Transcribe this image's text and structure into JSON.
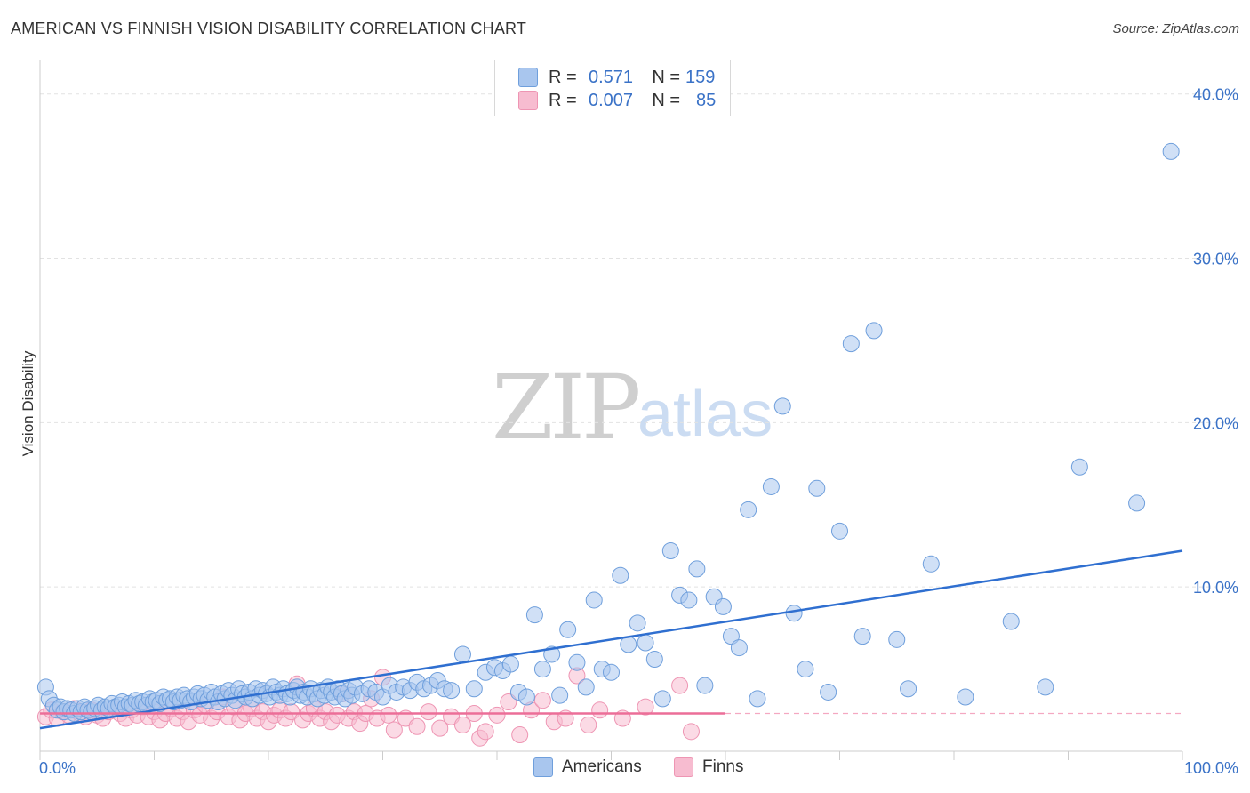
{
  "header": {
    "title": "AMERICAN VS FINNISH VISION DISABILITY CORRELATION CHART",
    "source": "Source: ZipAtlas.com"
  },
  "watermark": {
    "zip": "ZIP",
    "atlas": "atlas"
  },
  "legend": {
    "rows": [
      {
        "r_label": "R =",
        "r_value": "0.571",
        "n_label": "N =",
        "n_value": "159"
      },
      {
        "r_label": "R =",
        "r_value": "0.007",
        "n_label": "N =",
        "n_value": "85"
      }
    ],
    "bottom": [
      "Americans",
      "Finns"
    ]
  },
  "colors": {
    "americans_fill": "#a9c6ee",
    "americans_stroke": "#6f9fdc",
    "americans_line": "#2f6fd0",
    "finns_fill": "#f7bcd0",
    "finns_stroke": "#ee95b3",
    "finns_line": "#ec6e98",
    "tick_label": "#3a72c7",
    "grid": "#e2e2e2"
  },
  "chart_data": {
    "type": "scatter",
    "title": "AMERICAN VS FINNISH VISION DISABILITY CORRELATION CHART",
    "ylabel": "Vision Disability",
    "xlabel": "",
    "xlim": [
      0,
      100
    ],
    "ylim": [
      0,
      41.5
    ],
    "x_tick_labels": [
      "0.0%",
      "100.0%"
    ],
    "y_ticks": [
      10,
      20,
      30,
      40
    ],
    "y_tick_labels": [
      "10.0%",
      "20.0%",
      "30.0%",
      "40.0%"
    ],
    "grid": "horizontal dashed",
    "legend_position": "top-center",
    "series": [
      {
        "name": "Americans",
        "r": 0.571,
        "n": 159,
        "trend": {
          "x": [
            0,
            100
          ],
          "y": [
            1.4,
            12.2
          ]
        },
        "points": [
          [
            0.5,
            3.9
          ],
          [
            0.8,
            3.2
          ],
          [
            1.2,
            2.8
          ],
          [
            1.5,
            2.5
          ],
          [
            1.8,
            2.7
          ],
          [
            2.1,
            2.4
          ],
          [
            2.4,
            2.6
          ],
          [
            2.7,
            2.5
          ],
          [
            3.0,
            2.3
          ],
          [
            3.3,
            2.6
          ],
          [
            3.6,
            2.4
          ],
          [
            3.9,
            2.7
          ],
          [
            4.2,
            2.5
          ],
          [
            4.5,
            2.4
          ],
          [
            4.8,
            2.6
          ],
          [
            5.1,
            2.8
          ],
          [
            5.4,
            2.5
          ],
          [
            5.7,
            2.7
          ],
          [
            6.0,
            2.6
          ],
          [
            6.3,
            2.9
          ],
          [
            6.6,
            2.7
          ],
          [
            6.9,
            2.8
          ],
          [
            7.2,
            3.0
          ],
          [
            7.5,
            2.7
          ],
          [
            7.8,
            2.9
          ],
          [
            8.1,
            2.8
          ],
          [
            8.4,
            3.1
          ],
          [
            8.7,
            2.9
          ],
          [
            9.0,
            3.0
          ],
          [
            9.3,
            2.8
          ],
          [
            9.6,
            3.2
          ],
          [
            9.9,
            3.0
          ],
          [
            10.2,
            3.1
          ],
          [
            10.5,
            2.9
          ],
          [
            10.8,
            3.3
          ],
          [
            11.1,
            3.1
          ],
          [
            11.4,
            3.2
          ],
          [
            11.7,
            3.0
          ],
          [
            12.0,
            3.3
          ],
          [
            12.3,
            3.1
          ],
          [
            12.6,
            3.4
          ],
          [
            12.9,
            3.2
          ],
          [
            13.2,
            3.0
          ],
          [
            13.5,
            3.3
          ],
          [
            13.8,
            3.5
          ],
          [
            14.1,
            3.2
          ],
          [
            14.4,
            3.4
          ],
          [
            14.7,
            3.1
          ],
          [
            15.0,
            3.6
          ],
          [
            15.3,
            3.3
          ],
          [
            15.6,
            3.0
          ],
          [
            15.9,
            3.5
          ],
          [
            16.2,
            3.2
          ],
          [
            16.5,
            3.7
          ],
          [
            16.8,
            3.4
          ],
          [
            17.1,
            3.1
          ],
          [
            17.4,
            3.8
          ],
          [
            17.7,
            3.5
          ],
          [
            18.0,
            3.3
          ],
          [
            18.3,
            3.6
          ],
          [
            18.6,
            3.2
          ],
          [
            18.9,
            3.8
          ],
          [
            19.2,
            3.4
          ],
          [
            19.5,
            3.7
          ],
          [
            19.8,
            3.5
          ],
          [
            20.1,
            3.3
          ],
          [
            20.4,
            3.9
          ],
          [
            20.7,
            3.6
          ],
          [
            21.0,
            3.4
          ],
          [
            21.3,
            3.8
          ],
          [
            21.6,
            3.5
          ],
          [
            21.9,
            3.3
          ],
          [
            22.2,
            3.7
          ],
          [
            22.5,
            3.9
          ],
          [
            22.8,
            3.4
          ],
          [
            23.1,
            3.6
          ],
          [
            23.4,
            3.3
          ],
          [
            23.7,
            3.8
          ],
          [
            24.0,
            3.5
          ],
          [
            24.3,
            3.2
          ],
          [
            24.6,
            3.7
          ],
          [
            24.9,
            3.4
          ],
          [
            25.2,
            3.9
          ],
          [
            25.5,
            3.6
          ],
          [
            25.8,
            3.3
          ],
          [
            26.1,
            3.8
          ],
          [
            26.4,
            3.5
          ],
          [
            26.7,
            3.2
          ],
          [
            27.0,
            3.7
          ],
          [
            27.3,
            3.4
          ],
          [
            27.6,
            3.9
          ],
          [
            28.2,
            3.5
          ],
          [
            28.8,
            3.8
          ],
          [
            29.4,
            3.6
          ],
          [
            30.0,
            3.3
          ],
          [
            30.6,
            4.0
          ],
          [
            31.2,
            3.6
          ],
          [
            31.8,
            3.9
          ],
          [
            32.4,
            3.7
          ],
          [
            33.0,
            4.2
          ],
          [
            33.6,
            3.8
          ],
          [
            34.2,
            4.0
          ],
          [
            34.8,
            4.3
          ],
          [
            35.4,
            3.8
          ],
          [
            36.0,
            3.7
          ],
          [
            37.0,
            5.9
          ],
          [
            38.0,
            3.8
          ],
          [
            39.0,
            4.8
          ],
          [
            39.8,
            5.1
          ],
          [
            40.5,
            4.9
          ],
          [
            41.2,
            5.3
          ],
          [
            41.9,
            3.6
          ],
          [
            42.6,
            3.3
          ],
          [
            43.3,
            8.3
          ],
          [
            44.0,
            5.0
          ],
          [
            44.8,
            5.9
          ],
          [
            45.5,
            3.4
          ],
          [
            46.2,
            7.4
          ],
          [
            47.0,
            5.4
          ],
          [
            47.8,
            3.9
          ],
          [
            48.5,
            9.2
          ],
          [
            49.2,
            5.0
          ],
          [
            50.0,
            4.8
          ],
          [
            50.8,
            10.7
          ],
          [
            51.5,
            6.5
          ],
          [
            52.3,
            7.8
          ],
          [
            53.0,
            6.6
          ],
          [
            53.8,
            5.6
          ],
          [
            54.5,
            3.2
          ],
          [
            55.2,
            12.2
          ],
          [
            56.0,
            9.5
          ],
          [
            56.8,
            9.2
          ],
          [
            57.5,
            11.1
          ],
          [
            58.2,
            4.0
          ],
          [
            59.0,
            9.4
          ],
          [
            59.8,
            8.8
          ],
          [
            60.5,
            7.0
          ],
          [
            61.2,
            6.3
          ],
          [
            62.0,
            14.7
          ],
          [
            62.8,
            3.2
          ],
          [
            64.0,
            16.1
          ],
          [
            65.0,
            21.0
          ],
          [
            66.0,
            8.4
          ],
          [
            67.0,
            5.0
          ],
          [
            68.0,
            16.0
          ],
          [
            69.0,
            3.6
          ],
          [
            70.0,
            13.4
          ],
          [
            71.0,
            24.8
          ],
          [
            72.0,
            7.0
          ],
          [
            73.0,
            25.6
          ],
          [
            75.0,
            6.8
          ],
          [
            76.0,
            3.8
          ],
          [
            78.0,
            11.4
          ],
          [
            81.0,
            3.3
          ],
          [
            85.0,
            7.9
          ],
          [
            88.0,
            3.9
          ],
          [
            91.0,
            17.3
          ],
          [
            96.0,
            15.1
          ],
          [
            99.0,
            36.5
          ]
        ]
      },
      {
        "name": "Finns",
        "r": 0.007,
        "n": 85,
        "trend": {
          "x": [
            0,
            60
          ],
          "y": [
            2.3,
            2.3
          ]
        },
        "points": [
          [
            0.5,
            2.1
          ],
          [
            1.0,
            2.5
          ],
          [
            1.5,
            2.0
          ],
          [
            2.0,
            2.4
          ],
          [
            2.5,
            2.2
          ],
          [
            3.0,
            2.6
          ],
          [
            3.5,
            2.3
          ],
          [
            4.0,
            2.1
          ],
          [
            4.5,
            2.5
          ],
          [
            5.0,
            2.2
          ],
          [
            5.5,
            2.0
          ],
          [
            6.0,
            2.4
          ],
          [
            6.5,
            2.6
          ],
          [
            7.0,
            2.3
          ],
          [
            7.5,
            2.0
          ],
          [
            8.0,
            2.5
          ],
          [
            8.5,
            2.2
          ],
          [
            9.0,
            2.7
          ],
          [
            9.5,
            2.1
          ],
          [
            10.0,
            2.4
          ],
          [
            10.5,
            1.9
          ],
          [
            11.0,
            2.3
          ],
          [
            11.5,
            2.6
          ],
          [
            12.0,
            2.0
          ],
          [
            12.5,
            2.4
          ],
          [
            13.0,
            1.8
          ],
          [
            13.5,
            2.5
          ],
          [
            14.0,
            2.2
          ],
          [
            14.5,
            2.8
          ],
          [
            15.0,
            2.0
          ],
          [
            15.5,
            2.4
          ],
          [
            16.0,
            3.3
          ],
          [
            16.5,
            2.1
          ],
          [
            17.0,
            2.7
          ],
          [
            17.5,
            1.9
          ],
          [
            18.0,
            2.3
          ],
          [
            18.5,
            2.6
          ],
          [
            19.0,
            2.0
          ],
          [
            19.5,
            2.4
          ],
          [
            20.0,
            1.8
          ],
          [
            20.5,
            2.2
          ],
          [
            21.0,
            2.5
          ],
          [
            21.5,
            2.0
          ],
          [
            22.0,
            2.4
          ],
          [
            22.5,
            4.1
          ],
          [
            23.0,
            1.9
          ],
          [
            23.5,
            2.3
          ],
          [
            24.0,
            2.6
          ],
          [
            24.5,
            2.0
          ],
          [
            25.0,
            2.4
          ],
          [
            25.5,
            1.8
          ],
          [
            26.0,
            2.2
          ],
          [
            26.5,
            3.5
          ],
          [
            27.0,
            2.0
          ],
          [
            27.5,
            2.4
          ],
          [
            28.0,
            1.7
          ],
          [
            28.5,
            2.3
          ],
          [
            29.0,
            3.2
          ],
          [
            29.5,
            2.0
          ],
          [
            30.0,
            4.5
          ],
          [
            30.5,
            2.2
          ],
          [
            31.0,
            1.3
          ],
          [
            32.0,
            2.0
          ],
          [
            33.0,
            1.5
          ],
          [
            34.0,
            2.4
          ],
          [
            35.0,
            1.4
          ],
          [
            36.0,
            2.1
          ],
          [
            37.0,
            1.6
          ],
          [
            38.0,
            2.3
          ],
          [
            38.5,
            0.8
          ],
          [
            39.0,
            1.2
          ],
          [
            40.0,
            2.2
          ],
          [
            41.0,
            3.0
          ],
          [
            42.0,
            1.0
          ],
          [
            43.0,
            2.5
          ],
          [
            44.0,
            3.1
          ],
          [
            45.0,
            1.8
          ],
          [
            46.0,
            2.0
          ],
          [
            47.0,
            4.6
          ],
          [
            48.0,
            1.6
          ],
          [
            49.0,
            2.5
          ],
          [
            51.0,
            2.0
          ],
          [
            53.0,
            2.7
          ],
          [
            56.0,
            4.0
          ],
          [
            57.0,
            1.2
          ]
        ]
      }
    ]
  }
}
